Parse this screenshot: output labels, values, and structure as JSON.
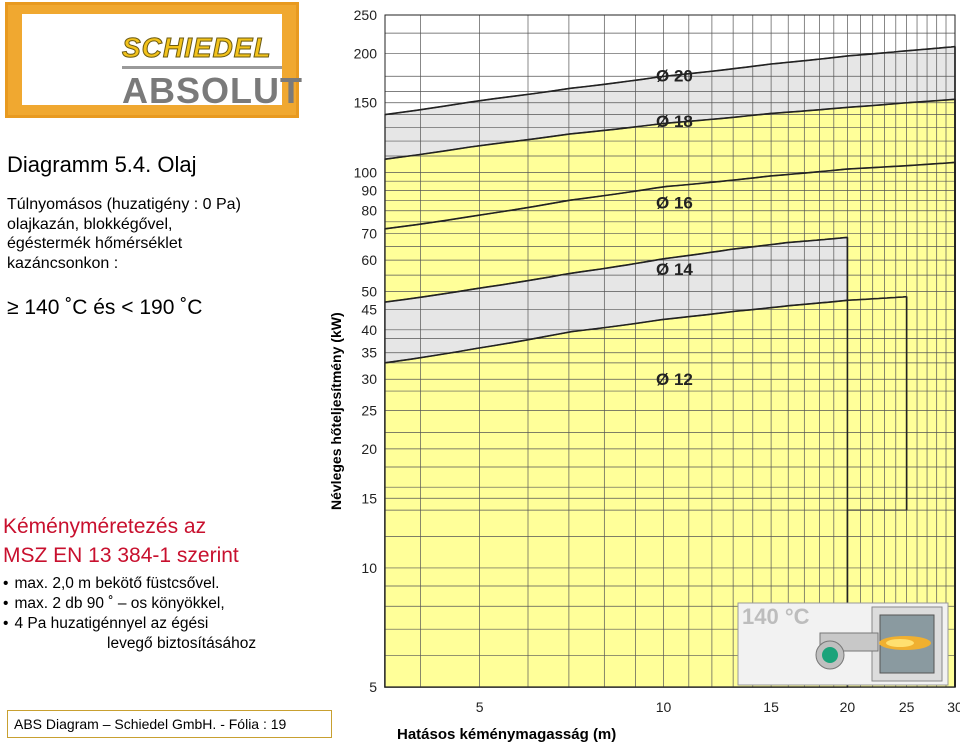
{
  "logo": {
    "brand": "SCHIEDEL",
    "product": "ABSOLUT"
  },
  "title": "Diagramm 5.4. Olaj",
  "subtitle_lines": [
    "Túlnyomásos (huzatigény : 0 Pa)",
    "olajkazán, blokkégővel,",
    "égéstermék hőmérséklet",
    "kazáncsonkon :"
  ],
  "temperature_condition": "≥ 140 ˚C és < 190 ˚C",
  "standard": {
    "title_line1": "Kéményméretezés az",
    "title_line2": "MSZ EN 13 384-1 szerint"
  },
  "bullets": [
    "max. 2,0 m bekötő füstcsővel.",
    "max. 2 db 90 ˚ – os könyökkel,",
    "4 Pa huzatigénnyel az égési",
    "levegő biztosításához"
  ],
  "footer": "ABS Diagram – Schiedel GmbH. - Fólia : 19",
  "inset": {
    "label": "140 °C"
  },
  "colors": {
    "band_yellow": "#ffff99",
    "band_gray": "#e6e6e6",
    "accent_red": "#c8102e",
    "logo_orange": "#f0a830",
    "logo_yellow": "#f2c21b"
  },
  "chart_data": {
    "type": "area",
    "ylabel": "Névleges hőteljesítmény (kW)",
    "xlabel": "Hatásos kéménymagasság (m)",
    "x_ticks": [
      5,
      10,
      15,
      20,
      25,
      30
    ],
    "y_ticks": [
      5,
      10,
      15,
      20,
      25,
      30,
      35,
      40,
      45,
      50,
      60,
      70,
      80,
      90,
      100,
      150,
      200,
      250
    ],
    "xlim": [
      3.5,
      30
    ],
    "ylim": [
      5,
      250
    ],
    "y_scale": "log",
    "grid": true,
    "series": [
      {
        "name": "Ø 12",
        "color": "#ffff99",
        "x": [
          3.5,
          25
        ],
        "upper": [
          [
            3.5,
            33
          ],
          [
            5,
            36
          ],
          [
            7,
            39.5
          ],
          [
            10,
            42.5
          ],
          [
            13,
            44.5
          ],
          [
            16,
            46
          ],
          [
            20,
            47.5
          ],
          [
            25,
            48.5
          ]
        ],
        "lower": [
          [
            20,
            14
          ],
          [
            25,
            14
          ]
        ]
      },
      {
        "name": "Ø 14",
        "color": "#e6e6e6",
        "x": [
          3.5,
          20
        ],
        "upper": [
          [
            3.5,
            47
          ],
          [
            5,
            51
          ],
          [
            7,
            55.5
          ],
          [
            10,
            60.5
          ],
          [
            13,
            64
          ],
          [
            16,
            66.5
          ],
          [
            20,
            68.5
          ]
        ]
      },
      {
        "name": "Ø 16",
        "color": "#ffff99",
        "x": [
          3.5,
          30
        ],
        "upper": [
          [
            3.5,
            72
          ],
          [
            5,
            78
          ],
          [
            7,
            85
          ],
          [
            10,
            92
          ],
          [
            15,
            98
          ],
          [
            20,
            102
          ],
          [
            25,
            104
          ],
          [
            30,
            106
          ]
        ]
      },
      {
        "name": "Ø 18",
        "color": "#ffff99",
        "x": [
          3.5,
          30
        ],
        "upper": [
          [
            3.5,
            108
          ],
          [
            5,
            117
          ],
          [
            7,
            125
          ],
          [
            10,
            133
          ],
          [
            15,
            141
          ],
          [
            20,
            146
          ],
          [
            25,
            150
          ],
          [
            30,
            153
          ]
        ]
      },
      {
        "name": "Ø 20",
        "color": "#e6e6e6",
        "x": [
          3.5,
          30
        ],
        "upper": [
          [
            3.5,
            140
          ],
          [
            5,
            152
          ],
          [
            7,
            163
          ],
          [
            10,
            175
          ],
          [
            15,
            188
          ],
          [
            20,
            197
          ],
          [
            25,
            203
          ],
          [
            30,
            208
          ]
        ]
      }
    ]
  }
}
